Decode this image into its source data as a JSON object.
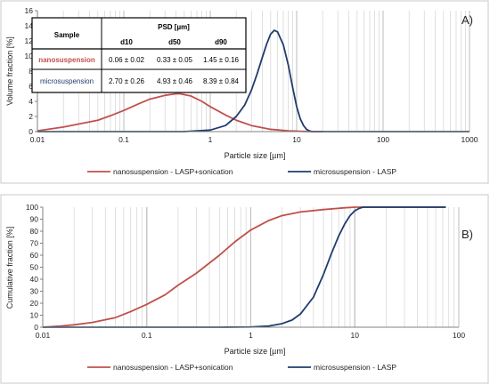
{
  "colors": {
    "nano": "#c0504d",
    "micro": "#1f3d6d",
    "grid": "#d4d4d4",
    "axis": "#808080",
    "text": "#222222"
  },
  "chart_data": [
    {
      "type": "line",
      "panel_label": "A)",
      "xlabel": "Particle size [µm]",
      "ylabel": "Volume fraction [%]",
      "x_scale": "log",
      "xlim": [
        0.01,
        1000
      ],
      "ylim": [
        0,
        16
      ],
      "x_ticks": [
        "0.01",
        "0.1",
        "1",
        "10",
        "100",
        "1000"
      ],
      "y_ticks": [
        "0",
        "2",
        "4",
        "6",
        "8",
        "10",
        "12",
        "14",
        "16"
      ],
      "grid": "vertical log minor lines",
      "legend_position": "bottom",
      "series": [
        {
          "name": "nanosuspension - LASP+sonication",
          "color": "#c0504d",
          "x": [
            0.01,
            0.02,
            0.03,
            0.05,
            0.07,
            0.1,
            0.15,
            0.2,
            0.3,
            0.4,
            0.45,
            0.6,
            0.8,
            1.0,
            1.5,
            2,
            3,
            5,
            8,
            12,
            15,
            20
          ],
          "y": [
            0.1,
            0.6,
            1.0,
            1.5,
            2.1,
            2.8,
            3.7,
            4.3,
            4.8,
            5.0,
            5.0,
            4.7,
            4.0,
            3.3,
            2.2,
            1.5,
            0.8,
            0.3,
            0.1,
            0.02,
            0,
            0
          ]
        },
        {
          "name": "microsuspension - LASP",
          "color": "#1f3d6d",
          "x": [
            0.01,
            0.5,
            1.0,
            1.5,
            2,
            2.5,
            3,
            3.5,
            4,
            4.5,
            5,
            5.5,
            6,
            7,
            8,
            9,
            10,
            11,
            12,
            13,
            14,
            15,
            20,
            100,
            1000
          ],
          "y": [
            0,
            0,
            0.2,
            0.8,
            2.0,
            3.5,
            5.5,
            7.7,
            9.8,
            11.6,
            12.9,
            13.4,
            13.2,
            11.5,
            8.8,
            5.8,
            3.3,
            1.7,
            0.8,
            0.3,
            0.1,
            0,
            0,
            0,
            0
          ]
        }
      ],
      "table": {
        "sample_header": "Sample",
        "psd_header": "PSD [µm]",
        "columns": [
          "d10",
          "d50",
          "d90"
        ],
        "rows": [
          {
            "label": "nanosuspension",
            "values": [
              "0.06 ± 0.02",
              "0.33 ± 0.05",
              "1.45 ± 0.16"
            ],
            "color": "#c0504d"
          },
          {
            "label": "microsuspension",
            "values": [
              "2.70 ± 0.26",
              "4.93 ± 0.46",
              "8.39 ± 0.84"
            ],
            "color": "#1f3d6d"
          }
        ]
      }
    },
    {
      "type": "line",
      "panel_label": "B)",
      "xlabel": "Particle size [µm]",
      "ylabel": "Cumulative fraction [%]",
      "x_scale": "log",
      "xlim": [
        0.01,
        100
      ],
      "ylim": [
        0,
        100
      ],
      "x_ticks": [
        "0.01",
        "0.1",
        "1",
        "10",
        "100"
      ],
      "y_ticks": [
        "0",
        "10",
        "20",
        "30",
        "40",
        "50",
        "60",
        "70",
        "80",
        "90",
        "100"
      ],
      "grid": "vertical log minor lines",
      "legend_position": "bottom",
      "series": [
        {
          "name": "nanosuspension - LASP+sonication",
          "color": "#c0504d",
          "x": [
            0.01,
            0.015,
            0.02,
            0.03,
            0.05,
            0.07,
            0.1,
            0.15,
            0.2,
            0.3,
            0.5,
            0.7,
            1.0,
            1.5,
            2,
            3,
            5,
            8,
            10,
            15,
            20,
            30,
            50,
            75
          ],
          "y": [
            0,
            1,
            2,
            4,
            8,
            13,
            19,
            27,
            35,
            45,
            60,
            71,
            81,
            89,
            93,
            96,
            98,
            99.5,
            100,
            100,
            100,
            100,
            100,
            100
          ]
        },
        {
          "name": "microsuspension - LASP",
          "color": "#1f3d6d",
          "x": [
            0.01,
            0.5,
            1.0,
            1.5,
            2,
            2.5,
            3,
            4,
            5,
            6,
            7,
            8,
            9,
            10,
            11,
            12,
            15,
            20,
            30,
            50,
            75
          ],
          "y": [
            0,
            0,
            0.2,
            1,
            3,
            6,
            11,
            25,
            44,
            62,
            76,
            86,
            93,
            97,
            99,
            100,
            100,
            100,
            100,
            100,
            100
          ]
        }
      ]
    }
  ]
}
